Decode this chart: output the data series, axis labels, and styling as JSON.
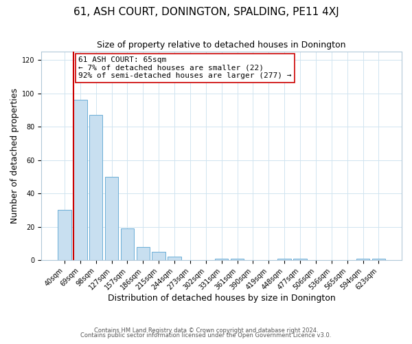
{
  "title": "61, ASH COURT, DONINGTON, SPALDING, PE11 4XJ",
  "subtitle": "Size of property relative to detached houses in Donington",
  "xlabel": "Distribution of detached houses by size in Donington",
  "ylabel": "Number of detached properties",
  "bar_labels": [
    "40sqm",
    "69sqm",
    "98sqm",
    "127sqm",
    "157sqm",
    "186sqm",
    "215sqm",
    "244sqm",
    "273sqm",
    "302sqm",
    "331sqm",
    "361sqm",
    "390sqm",
    "419sqm",
    "448sqm",
    "477sqm",
    "506sqm",
    "536sqm",
    "565sqm",
    "594sqm",
    "623sqm"
  ],
  "bar_values": [
    30,
    96,
    87,
    50,
    19,
    8,
    5,
    2,
    0,
    0,
    1,
    1,
    0,
    0,
    1,
    1,
    0,
    0,
    0,
    1,
    1
  ],
  "bar_color": "#c8dff0",
  "bar_edge_color": "#6aaed6",
  "property_line_color": "#cc0000",
  "annotation_text": "61 ASH COURT: 65sqm\n← 7% of detached houses are smaller (22)\n92% of semi-detached houses are larger (277) →",
  "annotation_box_color": "#ffffff",
  "annotation_box_edge_color": "#cc0000",
  "ylim": [
    0,
    125
  ],
  "yticks": [
    0,
    20,
    40,
    60,
    80,
    100,
    120
  ],
  "footer_line1": "Contains HM Land Registry data © Crown copyright and database right 2024.",
  "footer_line2": "Contains public sector information licensed under the Open Government Licence v3.0.",
  "background_color": "#ffffff",
  "grid_color": "#d0e4f0",
  "title_fontsize": 11,
  "subtitle_fontsize": 9,
  "axis_label_fontsize": 9,
  "tick_fontsize": 7,
  "annotation_fontsize": 8,
  "footer_fontsize": 6
}
